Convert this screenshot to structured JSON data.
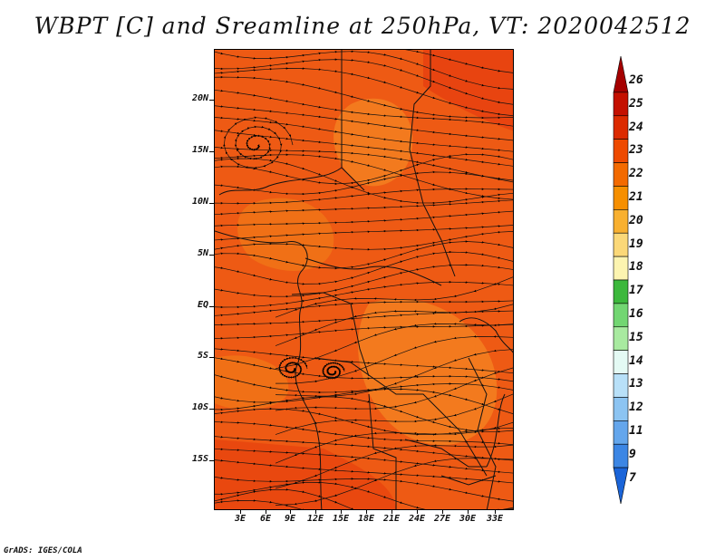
{
  "title": "WBPT [C] and Sreamline at 250hPa, VT: 2020042512",
  "footer": "GrADS: IGES/COLA",
  "lat_labels": [
    "20N",
    "15N",
    "10N",
    "5N",
    "EQ",
    "5S",
    "10S",
    "15S"
  ],
  "lon_labels": [
    "3E",
    "6E",
    "9E",
    "12E",
    "15E",
    "18E",
    "21E",
    "24E",
    "27E",
    "30E",
    "33E"
  ],
  "colorbar": {
    "labels": [
      "26",
      "25",
      "24",
      "23",
      "22",
      "21",
      "20",
      "19",
      "18",
      "17",
      "16",
      "15",
      "14",
      "13",
      "12",
      "11",
      "9",
      "7"
    ],
    "colors": [
      "#a50000",
      "#c41000",
      "#dc2a00",
      "#ee4a00",
      "#f36a00",
      "#f68f00",
      "#f8b030",
      "#fbd878",
      "#fcf4b0",
      "#3cb83c",
      "#72d672",
      "#a8eaa0",
      "#e4faf4",
      "#b8e0f8",
      "#8cc4f2",
      "#64a6ec",
      "#3c86e4",
      "#1a64d8"
    ]
  },
  "map": {
    "field_colors": {
      "hot": "#ec5214",
      "warm": "#f26a12",
      "mild": "#f6821c"
    }
  }
}
